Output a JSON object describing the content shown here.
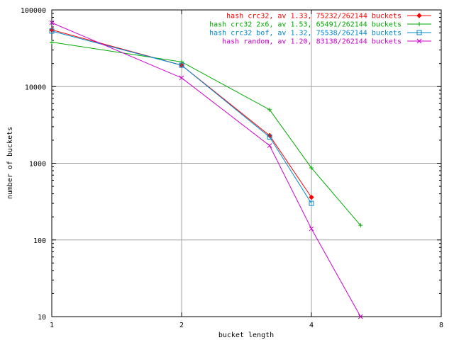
{
  "chart_data": {
    "type": "line",
    "title": "",
    "xlabel": "bucket length",
    "ylabel": "number of buckets",
    "x_scale": "log",
    "y_scale": "log",
    "xlim": [
      1,
      8
    ],
    "ylim": [
      10,
      100000
    ],
    "x_ticks": [
      1,
      2,
      4,
      8
    ],
    "x_tick_labels": [
      "1",
      "2",
      "4",
      "8"
    ],
    "y_ticks": [
      10,
      100,
      1000,
      10000,
      100000
    ],
    "y_tick_labels": [
      "10",
      "100",
      "1000",
      "10000",
      "100000"
    ],
    "grid": true,
    "legend_position": "top-right",
    "series": [
      {
        "name": "hash crc32, av 1.33, 75232/262144 buckets",
        "color": "#ff0000",
        "marker": "diamond",
        "points": [
          [
            1,
            55000
          ],
          [
            2,
            19000
          ],
          [
            3.2,
            2300
          ],
          [
            4,
            360
          ]
        ]
      },
      {
        "name": "hash crc32 2x6, av 1.53, 65491/262144 buckets",
        "color": "#00aa00",
        "marker": "plus",
        "points": [
          [
            1,
            38000
          ],
          [
            2,
            21000
          ],
          [
            3.2,
            5000
          ],
          [
            4,
            870
          ],
          [
            5.2,
            155
          ]
        ]
      },
      {
        "name": "hash crc32 bof, av 1.32, 75538/262144 buckets",
        "color": "#0088cc",
        "marker": "square",
        "points": [
          [
            1,
            53000
          ],
          [
            2,
            19000
          ],
          [
            3.2,
            2200
          ],
          [
            4,
            300
          ]
        ]
      },
      {
        "name": "hash random, av 1.20, 83138/262144 buckets",
        "color": "#cc00cc",
        "marker": "x",
        "points": [
          [
            1,
            68000
          ],
          [
            2,
            13000
          ],
          [
            3.2,
            1700
          ],
          [
            4,
            140
          ],
          [
            5.2,
            10
          ]
        ]
      }
    ]
  }
}
